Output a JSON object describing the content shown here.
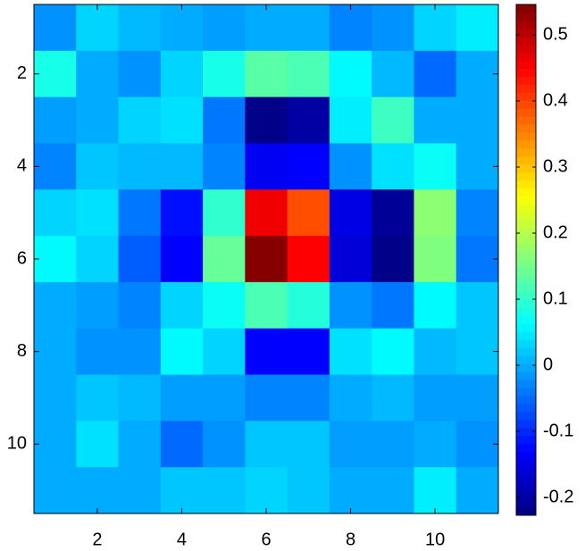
{
  "chart_data": {
    "type": "heatmap",
    "colormap": "jet",
    "x": [
      1,
      2,
      3,
      4,
      5,
      6,
      7,
      8,
      9,
      10,
      11
    ],
    "y": [
      1,
      2,
      3,
      4,
      5,
      6,
      7,
      8,
      9,
      10,
      11
    ],
    "xlim": [
      0.5,
      11.5
    ],
    "ylim": [
      0.5,
      11.5
    ],
    "y_reversed": true,
    "xticks": [
      2,
      4,
      6,
      8,
      10
    ],
    "yticks": [
      2,
      4,
      6,
      8,
      10
    ],
    "clim": [
      -0.227,
      0.546
    ],
    "cticks": [
      -0.2,
      -0.1,
      0,
      0.1,
      0.2,
      0.3,
      0.4,
      0.5
    ],
    "z": [
      [
        -0.02,
        0.03,
        0.01,
        0.0,
        -0.01,
        0.0,
        0.0,
        -0.03,
        -0.02,
        0.03,
        0.05
      ],
      [
        0.08,
        0.0,
        -0.02,
        0.03,
        0.08,
        0.13,
        0.12,
        0.06,
        0.01,
        -0.05,
        0.0
      ],
      [
        -0.01,
        0.0,
        0.03,
        0.04,
        -0.04,
        -0.22,
        -0.2,
        0.05,
        0.11,
        0.0,
        0.0
      ],
      [
        -0.03,
        0.02,
        0.01,
        0.01,
        -0.03,
        -0.14,
        -0.13,
        -0.02,
        0.04,
        0.07,
        0.0
      ],
      [
        0.03,
        0.04,
        -0.04,
        -0.12,
        0.1,
        0.46,
        0.39,
        -0.15,
        -0.21,
        0.17,
        -0.03
      ],
      [
        0.06,
        0.03,
        -0.06,
        -0.13,
        0.14,
        0.54,
        0.45,
        -0.16,
        -0.22,
        0.16,
        -0.04
      ],
      [
        0.0,
        -0.01,
        -0.03,
        0.03,
        0.07,
        0.12,
        0.09,
        -0.02,
        -0.04,
        0.06,
        0.02
      ],
      [
        0.0,
        -0.02,
        -0.02,
        0.06,
        0.03,
        -0.13,
        -0.13,
        0.04,
        0.06,
        0.01,
        0.02
      ],
      [
        0.0,
        0.02,
        0.01,
        -0.01,
        -0.01,
        -0.03,
        -0.03,
        0.0,
        0.01,
        -0.01,
        -0.01
      ],
      [
        0.0,
        0.04,
        0.0,
        -0.05,
        -0.02,
        0.02,
        0.02,
        -0.01,
        -0.01,
        0.0,
        -0.02
      ],
      [
        0.0,
        0.0,
        0.0,
        0.02,
        0.02,
        0.03,
        0.02,
        0.0,
        0.0,
        0.05,
        0.0
      ]
    ]
  }
}
